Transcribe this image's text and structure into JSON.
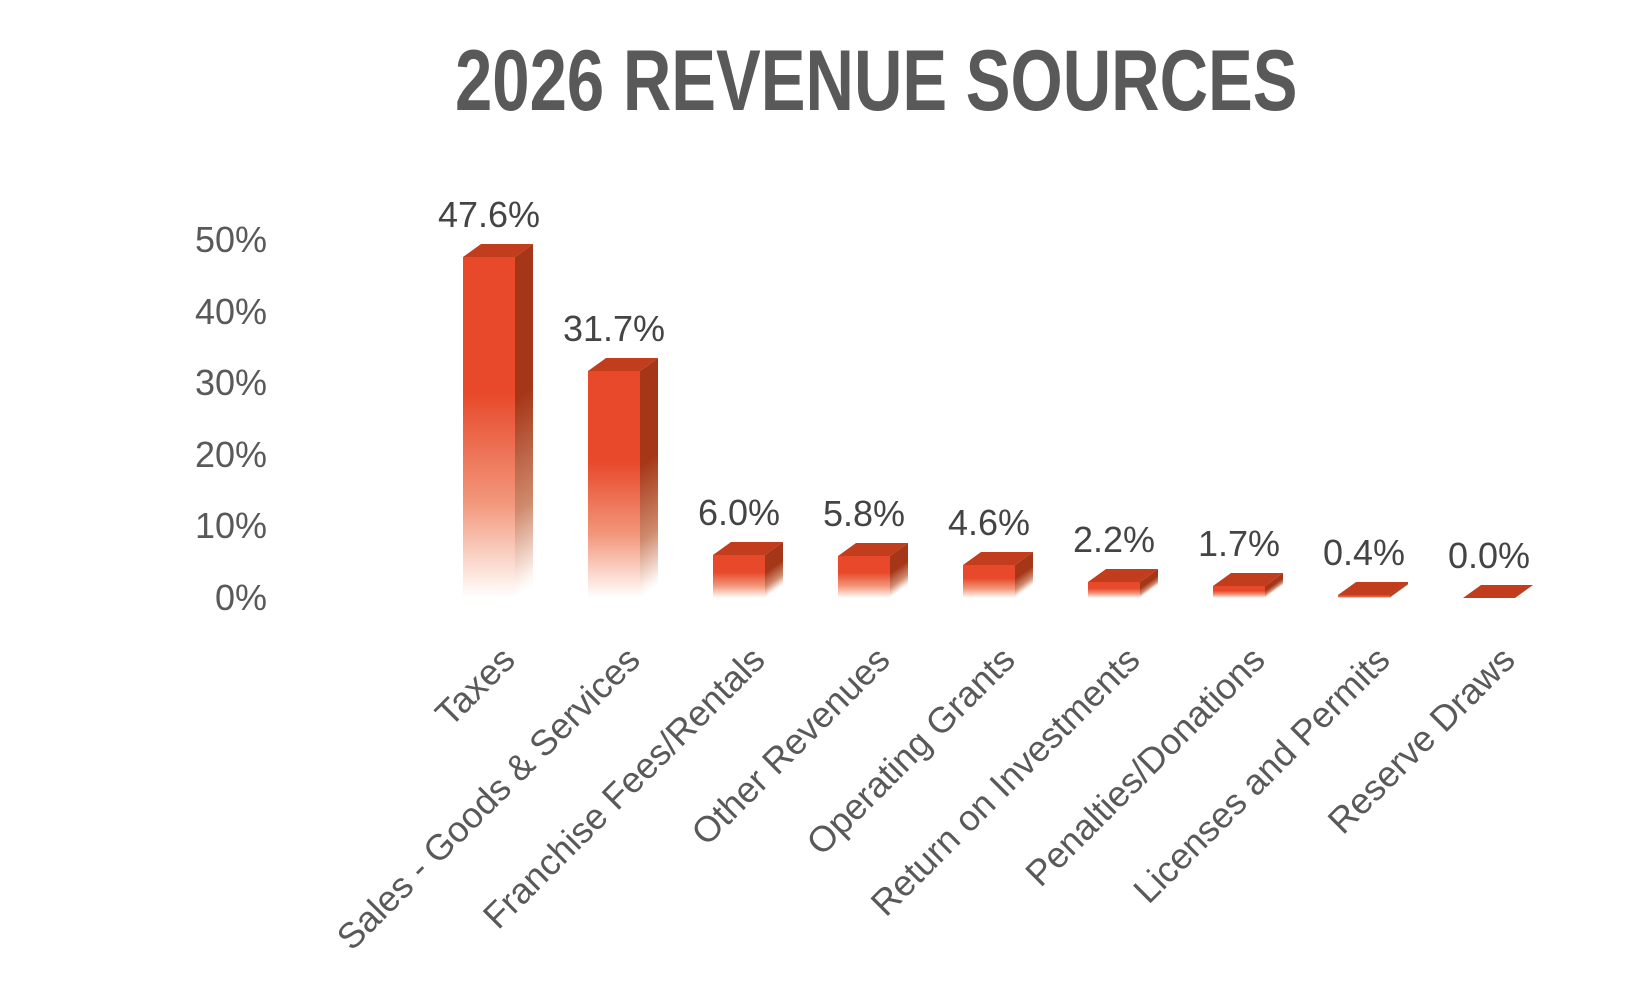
{
  "chart_data": {
    "type": "bar",
    "style": "3d-oblique-gradient-fade",
    "title": "2026 REVENUE SOURCES",
    "categories": [
      "Taxes",
      "Sales - Goods & Services",
      "Franchise Fees/Rentals",
      "Other Revenues",
      "Operating Grants",
      "Return on Investments",
      "Penalties/Donations",
      "Licenses and Permits",
      "Reserve Draws"
    ],
    "values": [
      47.6,
      31.7,
      6.0,
      5.8,
      4.6,
      2.2,
      1.7,
      0.4,
      0.0
    ],
    "data_labels": [
      "47.6%",
      "31.7%",
      "6.0%",
      "5.8%",
      "4.6%",
      "2.2%",
      "1.7%",
      "0.4%",
      "0.0%"
    ],
    "y_ticks": [
      "0%",
      "10%",
      "20%",
      "30%",
      "40%",
      "50%"
    ],
    "ylim": [
      0,
      50
    ],
    "xlabel": "",
    "ylabel": "",
    "grid": false,
    "legend": false,
    "axis_line": false,
    "colors": {
      "bar_front": "#e8492b",
      "bar_top": "#c23d1e",
      "bar_side": "#a53718",
      "fade_to": "#ffffff",
      "title_text": "#595959",
      "axis_text": "#595959",
      "data_label_text": "#444444",
      "background": "#ffffff"
    }
  }
}
